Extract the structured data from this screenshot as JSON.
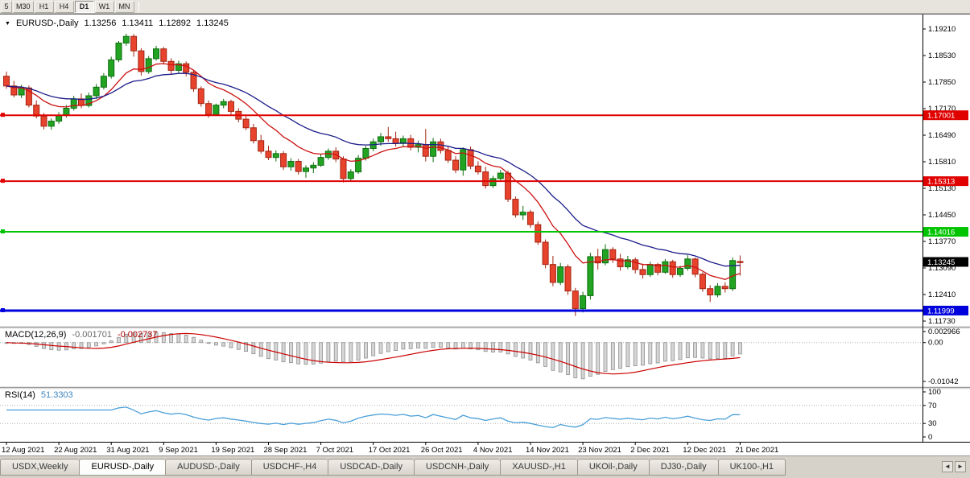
{
  "toolbar": {
    "timeframes": [
      {
        "label": "5",
        "active": false
      },
      {
        "label": "M30",
        "active": false
      },
      {
        "label": "H1",
        "active": false
      },
      {
        "label": "H4",
        "active": false
      },
      {
        "label": "D1",
        "active": true
      },
      {
        "label": "W1",
        "active": false
      },
      {
        "label": "MN",
        "active": false
      }
    ]
  },
  "chart": {
    "title": {
      "marker": "▼",
      "symbol": "EURUSD-,Daily",
      "open": "1.13256",
      "high": "1.13411",
      "low": "1.12892",
      "close": "1.13245"
    },
    "colors": {
      "candle_up": "#22a322",
      "candle_up_border": "#0f6e0f",
      "candle_down": "#e8432c",
      "candle_down_border": "#a32413",
      "ma_fast": "#cc1111",
      "ma_slow": "#1c1c8a",
      "macd_histogram": "#d6d6d6",
      "macd_histogram_border": "#8f8f8f",
      "macd_signal": "#cc0000",
      "rsi_line": "#4a9fd8",
      "line_red": "#e00000",
      "line_green": "#00c400",
      "line_blue": "#0000dd",
      "current_price_tag": "#000000",
      "axis_text": "#000000"
    },
    "price_axis": {
      "labels": [
        "1.19210",
        "1.18530",
        "1.17850",
        "1.17170",
        "1.16490",
        "1.15810",
        "1.15130",
        "1.14450",
        "1.13770",
        "1.13090",
        "1.12410",
        "1.11730"
      ],
      "tags": [
        {
          "price": 1.17001,
          "label": "1.17001",
          "color": "#e00000"
        },
        {
          "price": 1.15313,
          "label": "1.15313",
          "color": "#e00000"
        },
        {
          "price": 1.14016,
          "label": "1.14016",
          "color": "#00c400"
        },
        {
          "price": 1.13245,
          "label": "1.13245",
          "color": "#000000"
        },
        {
          "price": 1.11999,
          "label": "1.11999",
          "color": "#0000dd"
        }
      ]
    }
  },
  "chart_data": {
    "type": "candlestick",
    "symbol": "EURUSD",
    "timeframe": "Daily",
    "title": "EURUSD-,Daily",
    "current_price": 1.13245,
    "y_axis": {
      "tick_step": 0.0068,
      "top_tick": 1.1921,
      "bottom_tick": 1.1173
    },
    "hlines": [
      {
        "price": 1.17001,
        "color": "#e00000",
        "width": 2
      },
      {
        "price": 1.15313,
        "color": "#e00000",
        "width": 2
      },
      {
        "price": 1.14016,
        "color": "#00c400",
        "width": 2
      },
      {
        "price": 1.11999,
        "color": "#0000dd",
        "width": 3
      }
    ],
    "moving_averages": [
      {
        "period": 10,
        "type": "ema",
        "color": "#cc1111"
      },
      {
        "period": 22,
        "type": "ema",
        "color": "#1c1c8a"
      }
    ],
    "x_labels": [
      {
        "index": 0,
        "label": "12 Aug 2021"
      },
      {
        "index": 7,
        "label": "22 Aug 2021"
      },
      {
        "index": 14,
        "label": "31 Aug 2021"
      },
      {
        "index": 21,
        "label": "9 Sep 2021"
      },
      {
        "index": 28,
        "label": "19 Sep 2021"
      },
      {
        "index": 35,
        "label": "28 Sep 2021"
      },
      {
        "index": 42,
        "label": "7 Oct 2021"
      },
      {
        "index": 49,
        "label": "17 Oct 2021"
      },
      {
        "index": 56,
        "label": "26 Oct 2021"
      },
      {
        "index": 63,
        "label": "4 Nov 2021"
      },
      {
        "index": 70,
        "label": "14 Nov 2021"
      },
      {
        "index": 77,
        "label": "23 Nov 2021"
      },
      {
        "index": 84,
        "label": "2 Dec 2021"
      },
      {
        "index": 91,
        "label": "12 Dec 2021"
      },
      {
        "index": 98,
        "label": "21 Dec 2021"
      }
    ],
    "candles": [
      [
        1.18,
        1.1812,
        1.1768,
        1.1775
      ],
      [
        1.1775,
        1.1788,
        1.1746,
        1.1752
      ],
      [
        1.1752,
        1.1778,
        1.1744,
        1.177
      ],
      [
        1.177,
        1.1776,
        1.172,
        1.1726
      ],
      [
        1.1726,
        1.1738,
        1.1692,
        1.1698
      ],
      [
        1.1698,
        1.1706,
        1.1664,
        1.1672
      ],
      [
        1.1672,
        1.1692,
        1.1663,
        1.1685
      ],
      [
        1.1685,
        1.1708,
        1.1678,
        1.17
      ],
      [
        1.17,
        1.1726,
        1.1694,
        1.1718
      ],
      [
        1.1718,
        1.175,
        1.1712,
        1.1742
      ],
      [
        1.1742,
        1.1756,
        1.1718,
        1.1725
      ],
      [
        1.1725,
        1.1758,
        1.172,
        1.175
      ],
      [
        1.175,
        1.178,
        1.1742,
        1.1772
      ],
      [
        1.1772,
        1.1808,
        1.1766,
        1.18
      ],
      [
        1.18,
        1.185,
        1.1794,
        1.1842
      ],
      [
        1.1842,
        1.189,
        1.1836,
        1.1885
      ],
      [
        1.1885,
        1.1909,
        1.1878,
        1.1902
      ],
      [
        1.1902,
        1.1908,
        1.185,
        1.1865
      ],
      [
        1.1865,
        1.1872,
        1.1802,
        1.1812
      ],
      [
        1.1812,
        1.1852,
        1.1806,
        1.1845
      ],
      [
        1.1845,
        1.1878,
        1.184,
        1.187
      ],
      [
        1.187,
        1.1875,
        1.183,
        1.1838
      ],
      [
        1.1838,
        1.1846,
        1.1805,
        1.1815
      ],
      [
        1.1815,
        1.184,
        1.1808,
        1.1832
      ],
      [
        1.1832,
        1.1838,
        1.18,
        1.181
      ],
      [
        1.181,
        1.1816,
        1.176,
        1.1768
      ],
      [
        1.1768,
        1.1774,
        1.1722,
        1.173
      ],
      [
        1.173,
        1.1738,
        1.1694,
        1.1702
      ],
      [
        1.1702,
        1.173,
        1.1698,
        1.1726
      ],
      [
        1.1726,
        1.1742,
        1.1718,
        1.1735
      ],
      [
        1.1735,
        1.174,
        1.1702,
        1.171
      ],
      [
        1.171,
        1.1718,
        1.1682,
        1.169
      ],
      [
        1.169,
        1.1702,
        1.1662,
        1.1668
      ],
      [
        1.1668,
        1.1678,
        1.1628,
        1.1635
      ],
      [
        1.1635,
        1.165,
        1.1602,
        1.1608
      ],
      [
        1.1608,
        1.1622,
        1.1585,
        1.1592
      ],
      [
        1.1592,
        1.161,
        1.1582,
        1.1602
      ],
      [
        1.1602,
        1.1608,
        1.156,
        1.1568
      ],
      [
        1.1568,
        1.159,
        1.1558,
        1.1582
      ],
      [
        1.1582,
        1.1588,
        1.1548,
        1.1556
      ],
      [
        1.1556,
        1.1572,
        1.154,
        1.1565
      ],
      [
        1.1565,
        1.158,
        1.1552,
        1.1572
      ],
      [
        1.1572,
        1.16,
        1.1568,
        1.1592
      ],
      [
        1.1592,
        1.1615,
        1.1586,
        1.1608
      ],
      [
        1.1608,
        1.1618,
        1.158,
        1.1588
      ],
      [
        1.1588,
        1.1595,
        1.1528,
        1.1538
      ],
      [
        1.1538,
        1.1562,
        1.153,
        1.1555
      ],
      [
        1.1555,
        1.1598,
        1.155,
        1.159
      ],
      [
        1.159,
        1.1622,
        1.1584,
        1.1615
      ],
      [
        1.1615,
        1.164,
        1.1608,
        1.1632
      ],
      [
        1.1632,
        1.1655,
        1.1622,
        1.1645
      ],
      [
        1.1645,
        1.167,
        1.1632,
        1.164
      ],
      [
        1.164,
        1.1658,
        1.162,
        1.1628
      ],
      [
        1.1628,
        1.1648,
        1.1618,
        1.164
      ],
      [
        1.164,
        1.165,
        1.161,
        1.1618
      ],
      [
        1.1618,
        1.1635,
        1.1605,
        1.1625
      ],
      [
        1.1625,
        1.1665,
        1.1582,
        1.1595
      ],
      [
        1.1595,
        1.1642,
        1.158,
        1.1632
      ],
      [
        1.1632,
        1.164,
        1.1602,
        1.161
      ],
      [
        1.161,
        1.1622,
        1.1578,
        1.1585
      ],
      [
        1.1585,
        1.1595,
        1.1552,
        1.156
      ],
      [
        1.156,
        1.1618,
        1.1545,
        1.1612
      ],
      [
        1.1612,
        1.162,
        1.1562,
        1.157
      ],
      [
        1.157,
        1.1582,
        1.1548,
        1.1555
      ],
      [
        1.1555,
        1.1568,
        1.1512,
        1.152
      ],
      [
        1.152,
        1.1545,
        1.1514,
        1.1538
      ],
      [
        1.1538,
        1.156,
        1.153,
        1.1552
      ],
      [
        1.1552,
        1.1558,
        1.1478,
        1.1485
      ],
      [
        1.1485,
        1.1492,
        1.1438,
        1.1445
      ],
      [
        1.1445,
        1.1468,
        1.1432,
        1.1452
      ],
      [
        1.1452,
        1.1458,
        1.1412,
        1.142
      ],
      [
        1.142,
        1.1428,
        1.1368,
        1.1375
      ],
      [
        1.1375,
        1.1382,
        1.1308,
        1.1318
      ],
      [
        1.1318,
        1.134,
        1.1262,
        1.1272
      ],
      [
        1.1272,
        1.1322,
        1.1265,
        1.1312
      ],
      [
        1.1312,
        1.1318,
        1.124,
        1.125
      ],
      [
        1.125,
        1.1258,
        1.1186,
        1.1205
      ],
      [
        1.1205,
        1.1248,
        1.1195,
        1.1238
      ],
      [
        1.1238,
        1.1348,
        1.1228,
        1.1338
      ],
      [
        1.1338,
        1.1358,
        1.1305,
        1.1322
      ],
      [
        1.1322,
        1.137,
        1.1316,
        1.1356
      ],
      [
        1.1356,
        1.1362,
        1.1322,
        1.1332
      ],
      [
        1.1332,
        1.1345,
        1.1302,
        1.1312
      ],
      [
        1.1312,
        1.134,
        1.1306,
        1.133
      ],
      [
        1.133,
        1.1336,
        1.1295,
        1.1305
      ],
      [
        1.1305,
        1.132,
        1.1282,
        1.1292
      ],
      [
        1.1292,
        1.1325,
        1.1286,
        1.1318
      ],
      [
        1.1318,
        1.1322,
        1.129,
        1.1298
      ],
      [
        1.1298,
        1.1332,
        1.1294,
        1.1325
      ],
      [
        1.1325,
        1.133,
        1.1284,
        1.1292
      ],
      [
        1.1292,
        1.1315,
        1.1286,
        1.1308
      ],
      [
        1.1308,
        1.1342,
        1.1302,
        1.1332
      ],
      [
        1.1332,
        1.1336,
        1.1285,
        1.1293
      ],
      [
        1.1293,
        1.1298,
        1.1248,
        1.1256
      ],
      [
        1.1256,
        1.1265,
        1.1222,
        1.124
      ],
      [
        1.124,
        1.127,
        1.1234,
        1.1262
      ],
      [
        1.1262,
        1.1272,
        1.1246,
        1.1256
      ],
      [
        1.1256,
        1.1336,
        1.125,
        1.1328
      ],
      [
        1.13256,
        1.13411,
        1.12892,
        1.13245
      ]
    ],
    "indicators": {
      "macd": {
        "label": "MACD(12,26,9)",
        "fast": 12,
        "slow": 26,
        "signal": 9,
        "value_main": "-0.001701",
        "value_signal": "-0.002737",
        "axis": {
          "max": 0.002966,
          "min": -0.01042,
          "labels": [
            "0.002966",
            "0.00",
            "-0.01042"
          ]
        }
      },
      "rsi": {
        "label": "RSI(14)",
        "period": 14,
        "value": "51.3303",
        "levels": [
          70,
          30
        ],
        "axis_labels": [
          "100",
          "70",
          "30",
          "0"
        ]
      }
    }
  },
  "tabs": {
    "scroll_left": "◄",
    "scroll_right": "►",
    "items": [
      {
        "label": "USDX,Weekly",
        "active": false
      },
      {
        "label": "EURUSD-,Daily",
        "active": true
      },
      {
        "label": "AUDUSD-,Daily",
        "active": false
      },
      {
        "label": "USDCHF-,H4",
        "active": false
      },
      {
        "label": "USDCAD-,Daily",
        "active": false
      },
      {
        "label": "USDCNH-,Daily",
        "active": false
      },
      {
        "label": "XAUUSD-,H1",
        "active": false
      },
      {
        "label": "UKOil-,Daily",
        "active": false
      },
      {
        "label": "DJ30-,Daily",
        "active": false
      },
      {
        "label": "UK100-,H1",
        "active": false
      }
    ]
  }
}
